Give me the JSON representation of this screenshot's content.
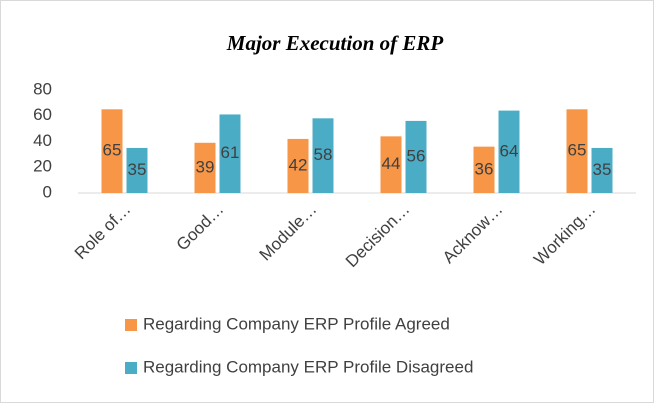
{
  "chart_data": {
    "type": "bar",
    "title": "Major Execution of ERP",
    "categories": [
      "Role of…",
      "Good…",
      "Module…",
      "Decision…",
      "Acknow…",
      "Working…"
    ],
    "series": [
      {
        "name": "Regarding Company ERP Profile Agreed",
        "color": "#f79646",
        "values": [
          65,
          39,
          42,
          44,
          36,
          65
        ]
      },
      {
        "name": "Regarding Company ERP Profile Disagreed",
        "color": "#4bacc6",
        "values": [
          35,
          61,
          58,
          56,
          64,
          35
        ]
      }
    ],
    "ylim": [
      0,
      80
    ],
    "yticks": [
      0,
      20,
      40,
      60,
      80
    ],
    "grid": false,
    "legend": "bottom"
  }
}
